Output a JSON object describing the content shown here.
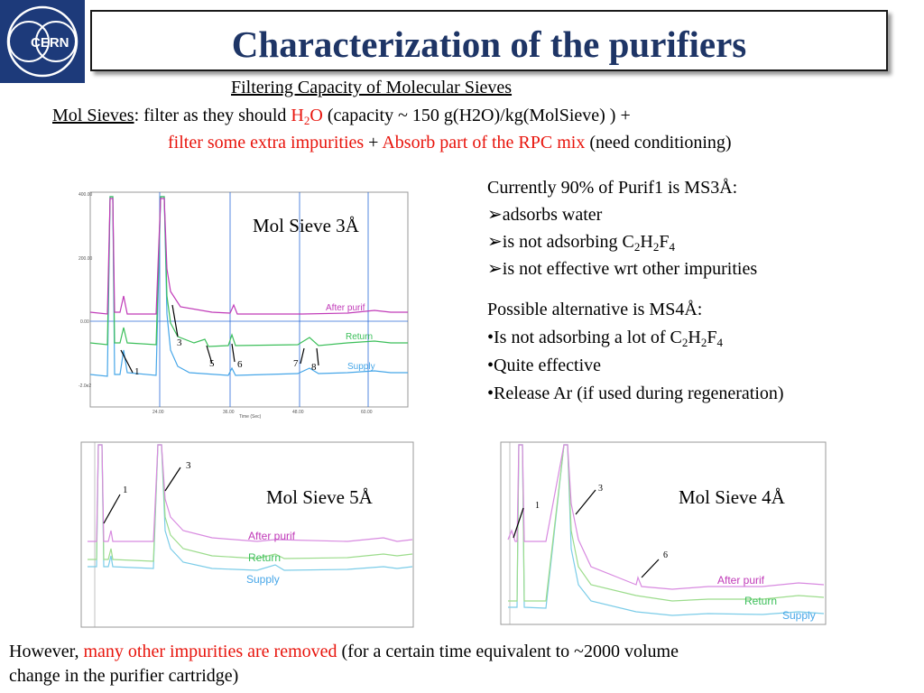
{
  "logo": {
    "text": "CERN"
  },
  "title": "Characterization of the purifiers",
  "subtitle": "Filtering Capacity of Molecular Sieves",
  "line1": {
    "label": "Mol Sieves",
    "text_a": ": filter as they should ",
    "h2o": "H",
    "h2o_sub": "2",
    "h2o_o": "O",
    "text_b": " (capacity ~ 150 g(H2O)/kg(MolSieve) ) +"
  },
  "line2": {
    "red_a": "filter some extra impurities",
    "plus": " + ",
    "red_b": "Absorb part of the RPC mix",
    "tail": " (need conditioning)"
  },
  "right_block1": {
    "head": "Currently 90% of Purif1 is MS3Å:",
    "bullet1": "adsorbs water",
    "bullet2_pre": "is not adsorbing C",
    "bullet2_s1": "2",
    "bullet2_h": "H",
    "bullet2_s2": "2",
    "bullet2_f": "F",
    "bullet2_s3": "4",
    "bullet3": "is not effective wrt other impurities"
  },
  "right_block2": {
    "head": "Possible alternative is MS4Å:",
    "bullet1_pre": "Is not adsorbing a lot of C",
    "bullet1_s1": "2",
    "bullet1_h": "H",
    "bullet1_s2": "2",
    "bullet1_f": "F",
    "bullet1_s3": "4",
    "bullet2": "Quite effective",
    "bullet3": "Release Ar (if used during regeneration)"
  },
  "panels": {
    "ms3": {
      "label": "Mol Sieve 3Å",
      "after": "After purif",
      "return": "Return",
      "supply": "Supply",
      "arrows": [
        "1",
        "3",
        "5",
        "6",
        "7",
        "8"
      ],
      "yticks": [
        "400.00",
        "200.00",
        "0.00",
        "-2.0e2"
      ],
      "xticks": [
        "24.00",
        "36.00",
        "48.00",
        "60.00"
      ],
      "xlabel": "Time (Sec)"
    },
    "ms5": {
      "label": "Mol Sieve 5Å",
      "after": "After purif",
      "return": "Return",
      "supply": "Supply",
      "arrows": [
        "1",
        "3"
      ]
    },
    "ms4": {
      "label": "Mol Sieve 4Å",
      "after": "After purif",
      "return": "Return",
      "supply": "Supply",
      "arrows": [
        "1",
        "3",
        "6"
      ]
    }
  },
  "footer": {
    "pre": "However, ",
    "red": "many other impurities are removed",
    "post": " (for a certain time equivalent to ~2000 volume",
    "line2": "change in the purifier cartridge)"
  }
}
